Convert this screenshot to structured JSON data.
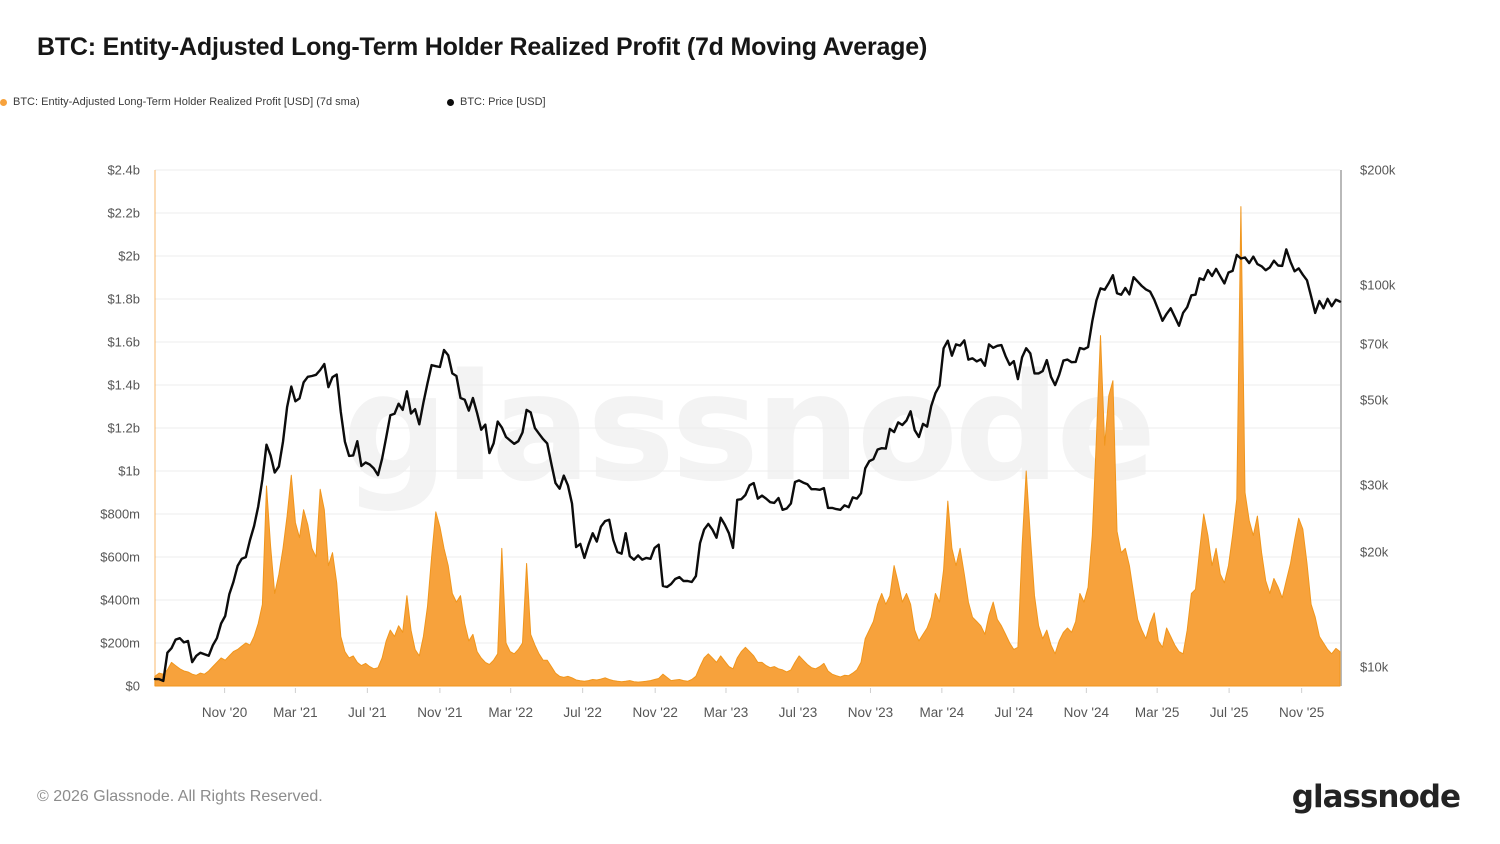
{
  "title": "BTC: Entity-Adjusted Long-Term Holder Realized Profit (7d Moving Average)",
  "legend": [
    {
      "label": "BTC: Entity-Adjusted Long-Term Holder Realized Profit [USD] (7d sma)",
      "color": "#F7A23C"
    },
    {
      "label": "BTC: Price [USD]",
      "color": "#0c0c0c"
    }
  ],
  "watermark": "glassnode",
  "footer": {
    "copyright": "© 2026 Glassnode. All Rights Reserved.",
    "logo_text": "glassnode"
  },
  "colors": {
    "area_fill": "#F7A23C",
    "area_stroke": "#F0961D",
    "price_line": "#0c0c0c",
    "grid": "#ececec",
    "axis_text": "#565656",
    "left_axis_line": "rgba(247,162,60,0.5)",
    "right_axis_line": "#b9b9b9",
    "tick_mark": "#cfcfcf"
  },
  "chart_data": {
    "type": "mixed",
    "description": "Orange area = entity-adjusted long-term holder realized profit (7d SMA, USD, left linear axis). Black line = BTC price (USD, right log axis). Weekly samples.",
    "x_start_date": "2020-07-06",
    "x_interval_days": 7,
    "x_end_date": "2026-01-05",
    "x_tick_labels": [
      {
        "label": "Nov '20",
        "date": "2020-11-01"
      },
      {
        "label": "Mar '21",
        "date": "2021-03-01"
      },
      {
        "label": "Jul '21",
        "date": "2021-07-01"
      },
      {
        "label": "Nov '21",
        "date": "2021-11-01"
      },
      {
        "label": "Mar '22",
        "date": "2022-03-01"
      },
      {
        "label": "Jul '22",
        "date": "2022-07-01"
      },
      {
        "label": "Nov '22",
        "date": "2022-11-01"
      },
      {
        "label": "Mar '23",
        "date": "2023-03-01"
      },
      {
        "label": "Jul '23",
        "date": "2023-07-01"
      },
      {
        "label": "Nov '23",
        "date": "2023-11-01"
      },
      {
        "label": "Mar '24",
        "date": "2024-03-01"
      },
      {
        "label": "Jul '24",
        "date": "2024-07-01"
      },
      {
        "label": "Nov '24",
        "date": "2024-11-01"
      },
      {
        "label": "Mar '25",
        "date": "2025-03-01"
      },
      {
        "label": "Jul '25",
        "date": "2025-07-01"
      },
      {
        "label": "Nov '25",
        "date": "2025-11-01"
      }
    ],
    "left_axis": {
      "scale": "linear",
      "unit": "USD",
      "min": 0,
      "max": 2400000000,
      "tick_step": 200000000,
      "tick_labels": [
        "$0",
        "$200m",
        "$400m",
        "$600m",
        "$800m",
        "$1b",
        "$1.2b",
        "$1.4b",
        "$1.6b",
        "$1.8b",
        "$2b",
        "$2.2b",
        "$2.4b"
      ]
    },
    "right_axis": {
      "scale": "log",
      "unit": "USD",
      "ylim_k": [
        8.92,
        200
      ],
      "tick_values_k": [
        10,
        20,
        30,
        50,
        70,
        100,
        200
      ],
      "tick_labels": [
        "$10k",
        "$20k",
        "$30k",
        "$50k",
        "$70k",
        "$100k",
        "$200k"
      ]
    },
    "grid": "horizontal-only",
    "legend_position": "top-left",
    "series": [
      {
        "name": "BTC: Entity-Adjusted Long-Term Holder Realized Profit [USD] (7d sma)",
        "type": "area",
        "axis": "left",
        "color": "#F7A23C",
        "unit": "million USD",
        "values_usd_m": [
          45,
          60,
          55,
          75,
          110,
          95,
          80,
          70,
          65,
          55,
          50,
          60,
          55,
          70,
          90,
          110,
          130,
          120,
          140,
          160,
          170,
          185,
          200,
          190,
          230,
          290,
          380,
          930,
          650,
          430,
          520,
          640,
          790,
          980,
          760,
          690,
          820,
          750,
          640,
          600,
          915,
          820,
          560,
          620,
          480,
          230,
          160,
          130,
          140,
          110,
          95,
          105,
          90,
          80,
          85,
          130,
          210,
          260,
          230,
          280,
          250,
          420,
          260,
          170,
          140,
          230,
          370,
          600,
          810,
          740,
          640,
          560,
          430,
          390,
          420,
          290,
          210,
          240,
          160,
          130,
          110,
          100,
          120,
          150,
          640,
          200,
          160,
          150,
          170,
          200,
          570,
          240,
          190,
          150,
          120,
          120,
          90,
          60,
          45,
          40,
          45,
          38,
          28,
          24,
          22,
          25,
          30,
          28,
          32,
          38,
          30,
          25,
          22,
          20,
          22,
          25,
          20,
          18,
          20,
          22,
          25,
          30,
          35,
          55,
          40,
          25,
          28,
          30,
          25,
          22,
          30,
          45,
          90,
          130,
          150,
          130,
          110,
          140,
          115,
          90,
          80,
          130,
          160,
          180,
          160,
          140,
          110,
          110,
          95,
          85,
          90,
          80,
          75,
          65,
          75,
          110,
          140,
          120,
          100,
          85,
          80,
          90,
          105,
          70,
          55,
          48,
          42,
          50,
          48,
          60,
          75,
          110,
          220,
          260,
          300,
          380,
          430,
          380,
          420,
          560,
          480,
          390,
          430,
          380,
          260,
          210,
          240,
          270,
          320,
          430,
          390,
          540,
          860,
          640,
          560,
          640,
          520,
          390,
          320,
          300,
          280,
          240,
          330,
          390,
          310,
          280,
          240,
          200,
          170,
          180,
          650,
          1000,
          700,
          420,
          280,
          220,
          260,
          190,
          150,
          210,
          250,
          270,
          250,
          300,
          430,
          390,
          460,
          700,
          1150,
          1630,
          1120,
          1350,
          1420,
          720,
          620,
          640,
          560,
          430,
          310,
          260,
          220,
          290,
          340,
          210,
          180,
          270,
          230,
          190,
          160,
          150,
          260,
          430,
          450,
          630,
          800,
          700,
          560,
          640,
          520,
          480,
          560,
          700,
          870,
          2230,
          900,
          770,
          700,
          790,
          620,
          490,
          430,
          500,
          460,
          410,
          490,
          570,
          680,
          780,
          730,
          570,
          380,
          320,
          230,
          200,
          170,
          150,
          175,
          160
        ]
      },
      {
        "name": "BTC: Price [USD]",
        "type": "line",
        "axis": "right",
        "color": "#0c0c0c",
        "unit": "thousand USD",
        "values_usd_k": [
          9.3,
          9.3,
          9.2,
          10.9,
          11.2,
          11.8,
          11.9,
          11.6,
          11.7,
          10.3,
          10.7,
          10.9,
          10.8,
          10.7,
          11.4,
          11.9,
          13.0,
          13.6,
          15.5,
          16.7,
          18.4,
          19.2,
          19.4,
          21.5,
          23.4,
          26.3,
          31.0,
          38.2,
          35.8,
          32.3,
          33.5,
          38.9,
          47.9,
          54.2,
          49.6,
          50.5,
          55.6,
          57.5,
          57.8,
          58.2,
          59.9,
          62.1,
          54.0,
          57.4,
          58.3,
          46.5,
          38.9,
          35.7,
          35.8,
          39.0,
          33.6,
          34.3,
          33.9,
          33.1,
          31.8,
          35.1,
          39.9,
          45.6,
          46.0,
          48.9,
          47.1,
          52.7,
          46.1,
          47.3,
          43.2,
          49.2,
          55.3,
          61.7,
          61.3,
          61.0,
          67.6,
          65.5,
          58.7,
          57.8,
          50.6,
          50.1,
          46.9,
          50.6,
          46.2,
          41.8,
          43.1,
          36.3,
          38.5,
          43.9,
          42.4,
          40.0,
          39.2,
          38.4,
          39.0,
          41.1,
          47.1,
          46.4,
          42.2,
          40.8,
          39.5,
          38.5,
          34.0,
          30.3,
          29.3,
          31.7,
          29.9,
          26.8,
          20.6,
          21.0,
          19.3,
          20.9,
          22.4,
          21.3,
          23.3,
          24.1,
          24.3,
          21.5,
          20.0,
          19.8,
          22.4,
          19.5,
          19.1,
          19.6,
          19.1,
          19.3,
          19.2,
          20.5,
          20.9,
          16.3,
          16.2,
          16.5,
          17.0,
          17.2,
          16.8,
          16.8,
          16.7,
          17.3,
          21.1,
          22.9,
          23.7,
          22.9,
          21.8,
          24.6,
          23.6,
          22.4,
          20.5,
          27.4,
          27.5,
          28.2,
          29.9,
          30.3,
          27.6,
          28.1,
          27.6,
          27.0,
          26.9,
          27.7,
          25.8,
          26.0,
          26.8,
          30.5,
          30.8,
          30.4,
          30.1,
          29.2,
          29.2,
          29.1,
          29.4,
          26.1,
          26.1,
          25.9,
          25.8,
          26.5,
          26.2,
          27.8,
          27.6,
          28.5,
          33.1,
          34.6,
          35.0,
          37.1,
          37.4,
          37.3,
          42.0,
          41.2,
          43.7,
          43.0,
          44.2,
          46.7,
          41.7,
          40.0,
          43.3,
          42.6,
          48.2,
          52.1,
          54.5,
          68.3,
          71.5,
          65.3,
          69.9,
          69.4,
          71.6,
          63.8,
          64.3,
          63.1,
          63.9,
          61.5,
          69.9,
          68.5,
          69.3,
          69.6,
          65.1,
          61.8,
          63.2,
          56.7,
          64.7,
          68.3,
          66.2,
          58.7,
          58.7,
          59.5,
          63.6,
          57.5,
          54.7,
          58.2,
          63.4,
          63.8,
          62.8,
          62.9,
          68.4,
          67.9,
          68.8,
          80.4,
          91.1,
          98.0,
          97.2,
          101.2,
          106.1,
          95.2,
          94.3,
          98.2,
          94.5,
          104.8,
          102.1,
          99.4,
          97.4,
          96.1,
          91.6,
          86.1,
          80.6,
          84.0,
          86.9,
          82.5,
          78.2,
          84.6,
          87.5,
          94.0,
          94.3,
          104.1,
          103.1,
          109.4,
          105.6,
          110.2,
          105.4,
          101.0,
          107.8,
          108.9,
          119.9,
          117.3,
          118.0,
          114.1,
          118.7,
          113.4,
          111.9,
          109.3,
          111.2,
          115.8,
          112.5,
          112.2,
          123.9,
          115.0,
          108.6,
          110.5,
          106.4,
          102.9,
          93.4,
          84.5,
          90.8,
          86.9,
          92.0,
          88.0,
          91.5,
          90.5
        ]
      }
    ]
  }
}
